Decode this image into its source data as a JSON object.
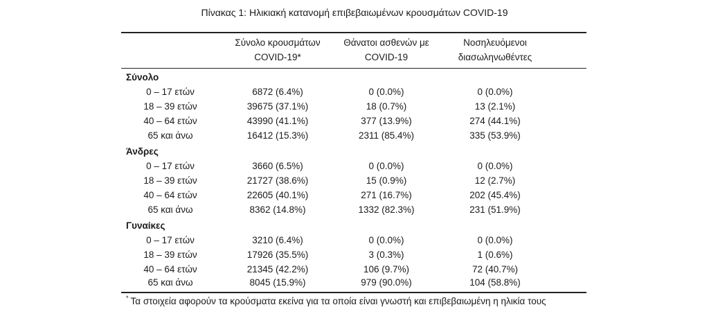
{
  "title": "Πίνακας 1: Ηλικιακή κατανομή επιβεβαιωμένων κρουσμάτων COVID-19",
  "headers": {
    "col1_line1": "Σύνολο κρουσμάτων",
    "col1_line2": "COVID-19*",
    "col2_line1": "Θάνατοι ασθενών με",
    "col2_line2": "COVID-19",
    "col3_line1": "Νοσηλευόμενοι",
    "col3_line2": "διασωληνωθέντες"
  },
  "groups": [
    {
      "label": "Σύνολο",
      "rows": [
        {
          "age": "0 – 17 ετών",
          "cases": "6872 (6.4%)",
          "deaths": "0 (0.0%)",
          "icu": "0 (0.0%)"
        },
        {
          "age": "18 – 39 ετών",
          "cases": "39675 (37.1%)",
          "deaths": "18 (0.7%)",
          "icu": "13 (2.1%)"
        },
        {
          "age": "40 – 64 ετών",
          "cases": "43990 (41.1%)",
          "deaths": "377 (13.9%)",
          "icu": "274 (44.1%)"
        },
        {
          "age": "65 και άνω",
          "cases": "16412 (15.3%)",
          "deaths": "2311 (85.4%)",
          "icu": "335 (53.9%)"
        }
      ]
    },
    {
      "label": "Άνδρες",
      "rows": [
        {
          "age": "0 – 17 ετών",
          "cases": "3660 (6.5%)",
          "deaths": "0 (0.0%)",
          "icu": "0 (0.0%)"
        },
        {
          "age": "18 – 39 ετών",
          "cases": "21727 (38.6%)",
          "deaths": "15 (0.9%)",
          "icu": "12 (2.7%)"
        },
        {
          "age": "40 – 64 ετών",
          "cases": "22605 (40.1%)",
          "deaths": "271 (16.7%)",
          "icu": "202 (45.4%)"
        },
        {
          "age": "65 και άνω",
          "cases": "8362 (14.8%)",
          "deaths": "1332 (82.3%)",
          "icu": "231 (51.9%)"
        }
      ]
    },
    {
      "label": "Γυναίκες",
      "rows": [
        {
          "age": "0 – 17 ετών",
          "cases": "3210 (6.4%)",
          "deaths": "0 (0.0%)",
          "icu": "0 (0.0%)"
        },
        {
          "age": "18 – 39 ετών",
          "cases": "17926 (35.5%)",
          "deaths": "3 (0.3%)",
          "icu": "1 (0.6%)"
        },
        {
          "age": "40 – 64 ετών",
          "cases": "21345 (42.2%)",
          "deaths": "106 (9.7%)",
          "icu": "72 (40.7%)"
        },
        {
          "age": "65 και άνω",
          "cases": "8045 (15.9%)",
          "deaths": "979 (90.0%)",
          "icu": "104 (58.8%)"
        }
      ]
    }
  ],
  "footnote": {
    "marker": "*",
    "text": "Τα στοιχεία αφορούν τα κρούσματα εκείνα για τα οποία είναι γνωστή και επιβεβαιωμένη η ηλικία τους"
  }
}
